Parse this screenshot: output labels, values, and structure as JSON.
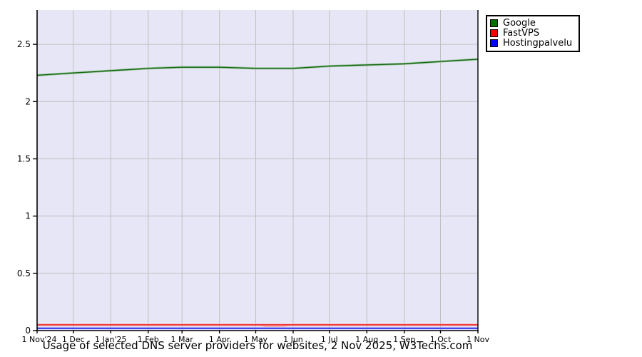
{
  "caption": "Usage of selected DNS server providers for websites, 2 Nov 2025, W3Techs.com",
  "legend": {
    "items": [
      {
        "label": "Google",
        "color": "#007000"
      },
      {
        "label": "FastVPS",
        "color": "#ff0000"
      },
      {
        "label": "Hostingpalvelu",
        "color": "#0000ff"
      }
    ]
  },
  "chart_data": {
    "type": "line",
    "title": "Usage of selected DNS server providers for websites, 2 Nov 2025, W3Techs.com",
    "x_tick_labels": [
      "1 Nov'24",
      "1 Dec",
      "1 Jan'25",
      "1 Feb",
      "1 Mar",
      "1 Apr",
      "1 May",
      "1 Jun",
      "1 Jul",
      "1 Aug",
      "1 Sep",
      "1 Oct",
      "1 Nov"
    ],
    "x_days": [
      0,
      30,
      61,
      92,
      120,
      151,
      181,
      212,
      242,
      273,
      304,
      334,
      365
    ],
    "x_range_days": [
      0,
      365
    ],
    "y_tick_labels": [
      "0",
      "0.5",
      "1",
      "1.5",
      "2",
      "2.5"
    ],
    "y_tick_values": [
      0,
      0.5,
      1,
      1.5,
      2,
      2.5
    ],
    "ylim": [
      0,
      2.8
    ],
    "grid": true,
    "legend_position": "top-right",
    "plot_bg_color": "#e6e6f6",
    "gridline_color": "#bfbfbf",
    "axis_color": "#000000",
    "series": [
      {
        "name": "Google",
        "color": "#156915",
        "halo_color": "#93bf93",
        "values": [
          2.23,
          2.25,
          2.27,
          2.29,
          2.3,
          2.3,
          2.29,
          2.29,
          2.31,
          2.32,
          2.33,
          2.35,
          2.37
        ]
      },
      {
        "name": "FastVPS",
        "color": "#ee1111",
        "halo_color": "#f5a8a8",
        "values": [
          0.05,
          0.05,
          0.05,
          0.05,
          0.05,
          0.05,
          0.05,
          0.05,
          0.05,
          0.05,
          0.05,
          0.05,
          0.05
        ]
      },
      {
        "name": "Hostingpalvelu",
        "color": "#1111ee",
        "halo_color": "#a8a8f5",
        "values": [
          0.02,
          0.02,
          0.02,
          0.02,
          0.02,
          0.02,
          0.02,
          0.02,
          0.02,
          0.02,
          0.02,
          0.02,
          0.02
        ]
      }
    ],
    "annotations": [
      {
        "series": "FastVPS",
        "type": "dip",
        "between_days": [
          181,
          212
        ],
        "min_value": 0.04,
        "color": "#f2a2a2"
      }
    ]
  }
}
